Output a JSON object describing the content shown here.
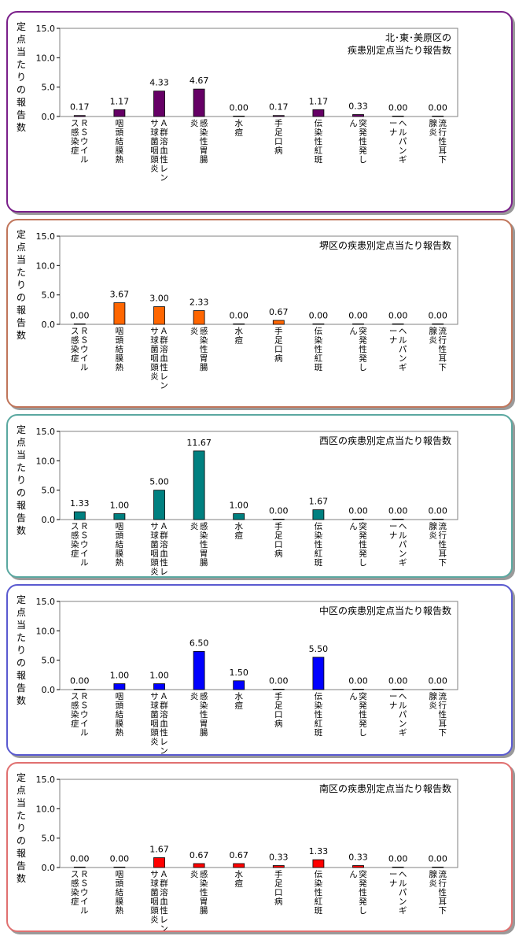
{
  "chart_data": [
    {
      "type": "bar",
      "title": "北･東･美原区の\n疾患別定点当たり報告数",
      "ylabel": "定点当たりの報告数",
      "ylim": [
        0,
        15
      ],
      "yticks": [
        "0.0",
        "5.0",
        "10.0",
        "15.0"
      ],
      "color": "#660066",
      "border": "#7a1f8a",
      "categories": [
        "ＲＳウイルス感染症",
        "咽頭結膜熱",
        "Ａ群溶血性レンサ球菌咽頭炎",
        "感染性胃腸炎",
        "水痘",
        "手足口病",
        "伝染性紅斑",
        "突発性発しん",
        "ヘルパンギーナ",
        "流行性耳下腺炎"
      ],
      "values": [
        0.17,
        1.17,
        4.33,
        4.67,
        0.0,
        0.17,
        1.17,
        0.33,
        0.0,
        0.0
      ],
      "labels": [
        "0.17",
        "1.17",
        "4.33",
        "4.67",
        "0.00",
        "0.17",
        "1.17",
        "0.33",
        "0.00",
        "0.00"
      ]
    },
    {
      "type": "bar",
      "title": "堺区の疾患別定点当たり報告数",
      "ylabel": "定点当たりの報告数",
      "ylim": [
        0,
        15
      ],
      "yticks": [
        "0.0",
        "5.0",
        "10.0",
        "15.0"
      ],
      "color": "#ff6600",
      "border": "#c0755a",
      "categories": [
        "ＲＳウイルス感染症",
        "咽頭結膜熱",
        "Ａ群溶血性レンサ球菌咽頭炎",
        "感染性胃腸炎",
        "水痘",
        "手足口病",
        "伝染性紅斑",
        "突発性発しん",
        "ヘルパンギーナ",
        "流行性耳下腺炎"
      ],
      "values": [
        0.0,
        3.67,
        3.0,
        2.33,
        0.0,
        0.67,
        0.0,
        0.0,
        0.0,
        0.0
      ],
      "labels": [
        "0.00",
        "3.67",
        "3.00",
        "2.33",
        "0.00",
        "0.67",
        "0.00",
        "0.00",
        "0.00",
        "0.00"
      ]
    },
    {
      "type": "bar",
      "title": "西区の疾患別定点当たり報告数",
      "ylabel": "定点当たりの報告数",
      "ylim": [
        0,
        15
      ],
      "yticks": [
        "0.0",
        "5.0",
        "10.0",
        "15.0"
      ],
      "color": "#008080",
      "border": "#5aa8a0",
      "categories": [
        "ＲＳウイルス感染症",
        "咽頭結膜熱",
        "Ａ群溶血性レンサ球菌咽頭炎",
        "感染性胃腸炎",
        "水痘",
        "手足口病",
        "伝染性紅斑",
        "突発性発しん",
        "ヘルパンギーナ",
        "流行性耳下腺炎"
      ],
      "values": [
        1.33,
        1.0,
        5.0,
        11.67,
        1.0,
        0.0,
        1.67,
        0.0,
        0.0,
        0.0
      ],
      "labels": [
        "1.33",
        "1.00",
        "5.00",
        "11.67",
        "1.00",
        "0.00",
        "1.67",
        "0.00",
        "0.00",
        "0.00"
      ]
    },
    {
      "type": "bar",
      "title": "中区の疾患別定点当たり報告数",
      "ylabel": "定点当たりの報告数",
      "ylim": [
        0,
        15
      ],
      "yticks": [
        "0.0",
        "5.0",
        "10.0",
        "15.0"
      ],
      "color": "#0000ff",
      "border": "#5a5ad0",
      "categories": [
        "ＲＳウイルス感染症",
        "咽頭結膜熱",
        "Ａ群溶血性レンサ球菌咽頭炎",
        "感染性胃腸炎",
        "水痘",
        "手足口病",
        "伝染性紅斑",
        "突発性発しん",
        "ヘルパンギーナ",
        "流行性耳下腺炎"
      ],
      "values": [
        0.0,
        1.0,
        1.0,
        6.5,
        1.5,
        0.0,
        5.5,
        0.0,
        0.0,
        0.0
      ],
      "labels": [
        "0.00",
        "1.00",
        "1.00",
        "6.50",
        "1.50",
        "0.00",
        "5.50",
        "0.00",
        "0.00",
        "0.00"
      ]
    },
    {
      "type": "bar",
      "title": "南区の疾患別定点当たり報告数",
      "ylabel": "定点当たりの報告数",
      "ylim": [
        0,
        15
      ],
      "yticks": [
        "0.0",
        "5.0",
        "10.0",
        "15.0"
      ],
      "color": "#ff0000",
      "border": "#e07070",
      "categories": [
        "ＲＳウイルス感染症",
        "咽頭結膜熱",
        "Ａ群溶血性レンサ球菌咽頭炎",
        "感染性胃腸炎",
        "水痘",
        "手足口病",
        "伝染性紅斑",
        "突発性発しん",
        "ヘルパンギーナ",
        "流行性耳下腺炎"
      ],
      "values": [
        0.0,
        0.0,
        1.67,
        0.67,
        0.67,
        0.33,
        1.33,
        0.33,
        0.0,
        0.0
      ],
      "labels": [
        "0.00",
        "0.00",
        "1.67",
        "0.67",
        "0.67",
        "0.33",
        "1.33",
        "0.33",
        "0.00",
        "0.00"
      ]
    }
  ]
}
